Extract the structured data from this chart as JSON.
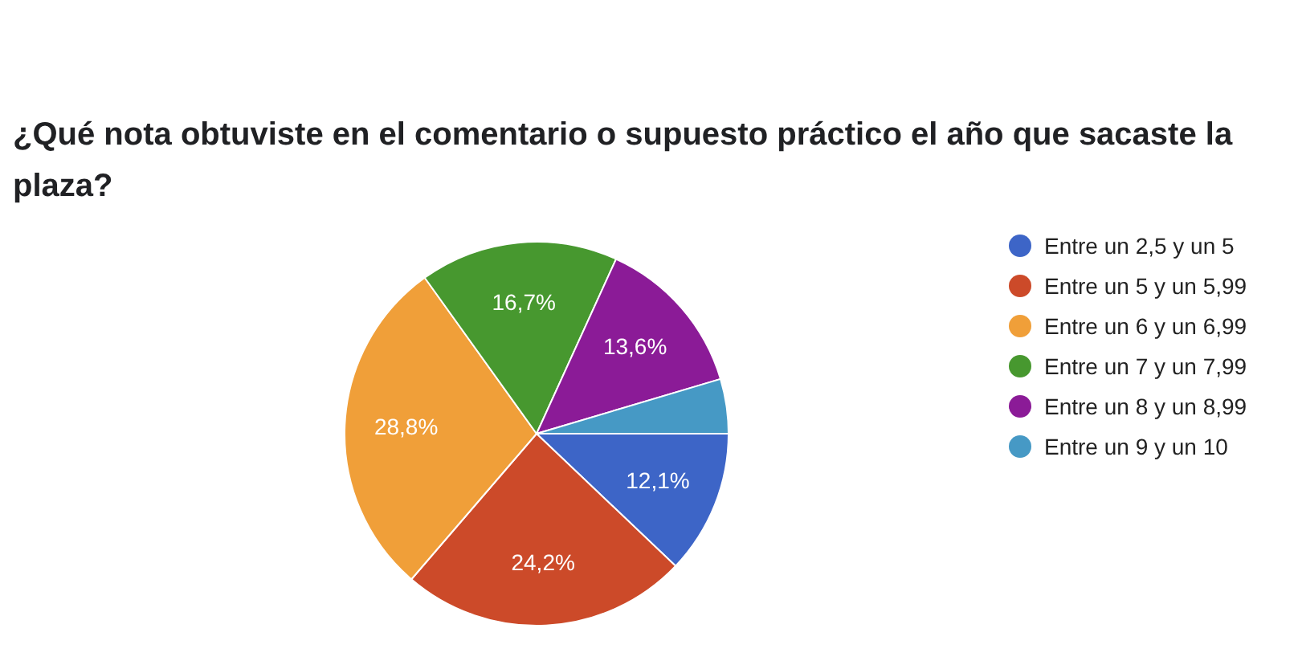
{
  "chart_data": {
    "type": "pie",
    "title": "¿Qué nota obtuviste en el comentario o supuesto práctico el año que sacaste la plaza?",
    "categories": [
      "Entre un 2,5 y un 5",
      "Entre un 5 y un 5,99",
      "Entre un 6 y un 6,99",
      "Entre un 7 y un 7,99",
      "Entre un 8 y un 8,99",
      "Entre un 9 y un 10"
    ],
    "values": [
      12.1,
      24.2,
      28.8,
      16.7,
      13.6,
      4.6
    ],
    "value_labels": [
      "12,1%",
      "24,2%",
      "28,8%",
      "16,7%",
      "13,6%",
      null
    ],
    "colors": [
      "#3d65c7",
      "#cc4a29",
      "#f09f39",
      "#47982f",
      "#8b1b97",
      "#4699c5"
    ],
    "legend": "right"
  }
}
